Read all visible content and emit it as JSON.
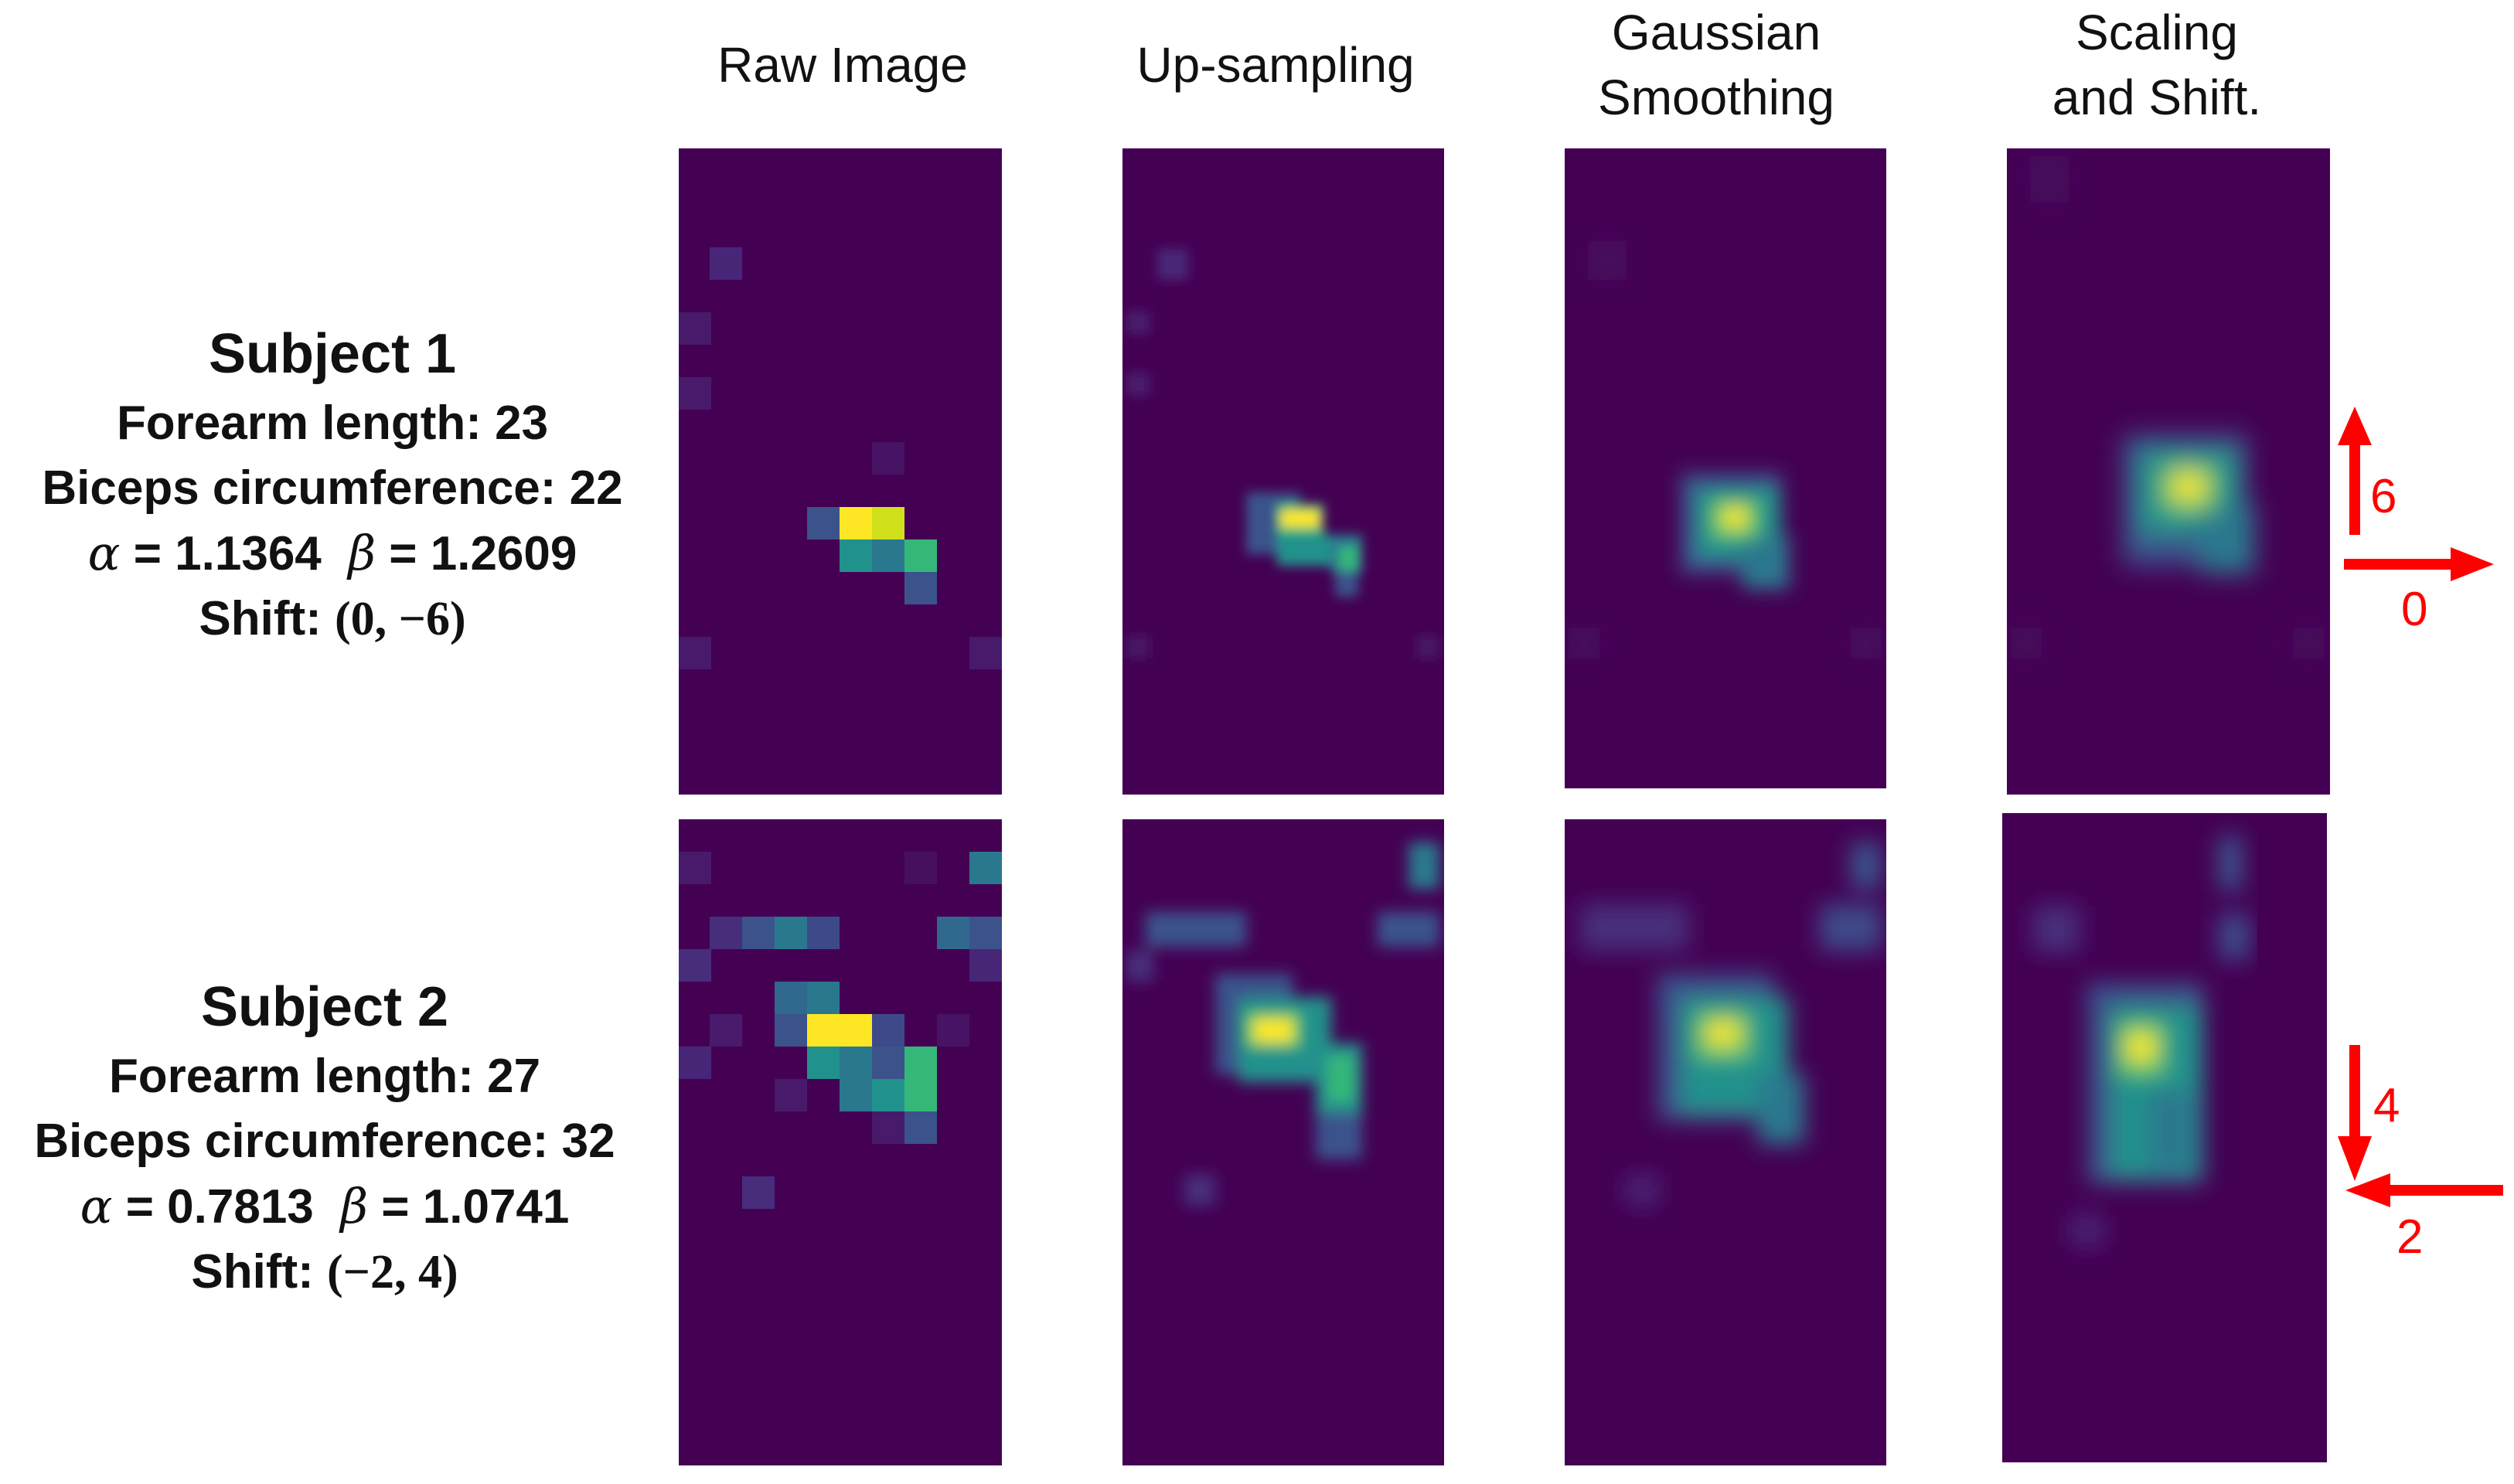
{
  "columns": [
    "Raw Image",
    "Up-sampling",
    "Gaussian\nSmoothing",
    "Scaling\nand Shift."
  ],
  "subjects": [
    {
      "title": "Subject 1",
      "forearm": "Forearm length: 23",
      "biceps": "Biceps circumference: 22",
      "alpha_sym": "α",
      "alpha_val": " = 1.1364",
      "beta_sym": "β",
      "beta_val": " = 1.2609",
      "shift_label": "Shift: ",
      "shift_val": "(0, −6)",
      "arrows": {
        "vertical": "6",
        "horizontal": "0"
      }
    },
    {
      "title": "Subject 2",
      "forearm": "Forearm length: 27",
      "biceps": "Biceps circumference: 32",
      "alpha_sym": "α",
      "alpha_val": " = 0.7813",
      "beta_sym": "β",
      "beta_val": " = 1.0741",
      "shift_label": "Shift: ",
      "shift_val": "(−2, 4)",
      "arrows": {
        "vertical": "4",
        "horizontal": "2"
      }
    }
  ],
  "colors": {
    "background": "#440154",
    "arrow": "#ff0000",
    "colormap": "viridis"
  }
}
